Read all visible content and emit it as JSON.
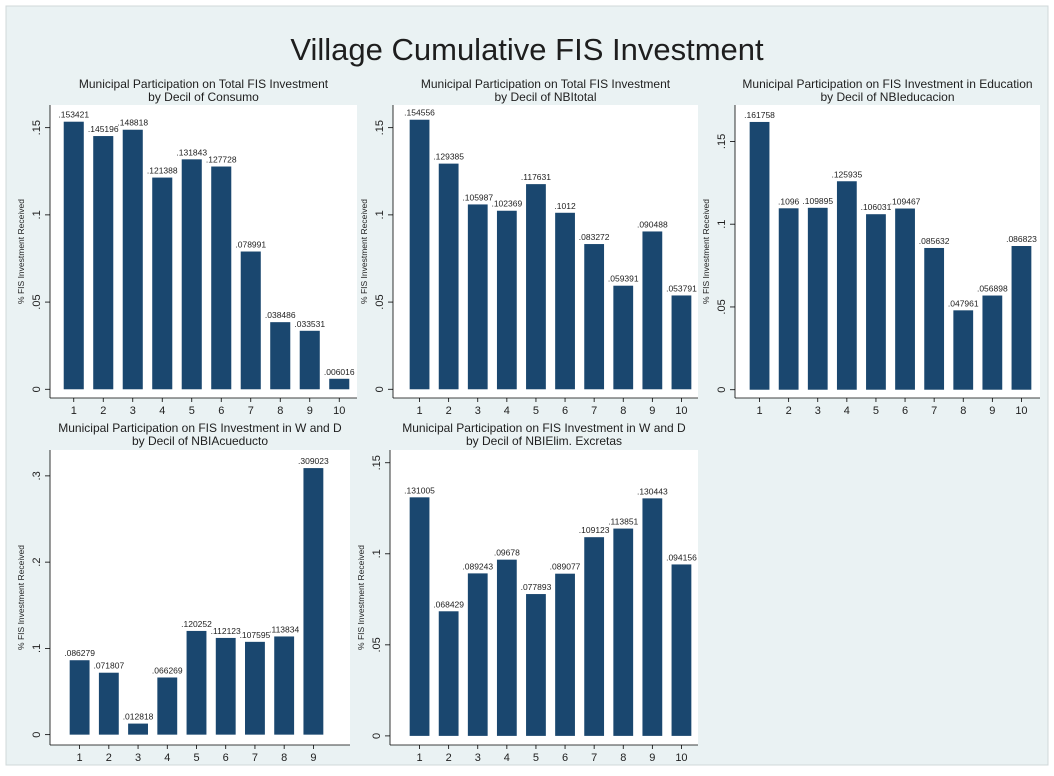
{
  "title": "Village Cumulative FIS Investment",
  "chart_data": [
    {
      "type": "bar",
      "title": [
        "Municipal Participation on Total FIS Investment",
        "by Decil of Consumo"
      ],
      "ylabel": "% FIS Investment Received",
      "color": "#1a476f",
      "categories": [
        "1",
        "2",
        "3",
        "4",
        "5",
        "6",
        "7",
        "8",
        "9",
        "10"
      ],
      "values": [
        0.153421,
        0.145196,
        0.148818,
        0.121388,
        0.131843,
        0.127728,
        0.078991,
        0.038486,
        0.033531,
        0.006016
      ],
      "value_labels": [
        ".153421",
        ".145196",
        ".148818",
        ".121388",
        ".131843",
        ".127728",
        ".078991",
        ".038486",
        ".033531",
        ".006016"
      ],
      "ylim": [
        -0.005,
        0.163
      ],
      "yticks": [
        0,
        {
          "value": 0.05,
          "label": ".05"
        },
        {
          "value": 0.1,
          "label": ".1"
        },
        {
          "value": 0.15,
          "label": ".15"
        }
      ]
    },
    {
      "type": "bar",
      "title": [
        "Municipal Participation on Total FIS Investment",
        "by Decil of NBItotal"
      ],
      "ylabel": "% FIS Investment Received",
      "color": "#1a476f",
      "categories": [
        "1",
        "2",
        "3",
        "4",
        "5",
        "6",
        "7",
        "8",
        "9",
        "10"
      ],
      "values": [
        0.154556,
        0.129385,
        0.105987,
        0.102369,
        0.117631,
        0.1012,
        0.083272,
        0.059391,
        0.090488,
        0.053791
      ],
      "value_labels": [
        ".154556",
        ".129385",
        ".105987",
        ".102369",
        ".117631",
        ".1012",
        ".083272",
        ".059391",
        ".090488",
        ".053791"
      ],
      "ylim": [
        -0.005,
        0.163
      ],
      "yticks": [
        0,
        {
          "value": 0.05,
          "label": ".05"
        },
        {
          "value": 0.1,
          "label": ".1"
        },
        {
          "value": 0.15,
          "label": ".15"
        }
      ]
    },
    {
      "type": "bar",
      "title": [
        "Municipal Participation on FIS Investment in Education",
        "by Decil of NBIeducacion"
      ],
      "ylabel": "% FIS Investment Received",
      "color": "#1a476f",
      "categories": [
        "1",
        "2",
        "3",
        "4",
        "5",
        "6",
        "7",
        "8",
        "9",
        "10"
      ],
      "values": [
        0.161758,
        0.1096,
        0.109895,
        0.125935,
        0.106031,
        0.109467,
        0.085632,
        0.047961,
        0.056898,
        0.086823
      ],
      "value_labels": [
        ".161758",
        ".1096",
        ".109895",
        ".125935",
        ".106031",
        ".109467",
        ".085632",
        ".047961",
        ".056898",
        ".086823"
      ],
      "ylim": [
        -0.005,
        0.172
      ],
      "yticks": [
        0,
        {
          "value": 0.05,
          "label": ".05"
        },
        {
          "value": 0.1,
          "label": ".1"
        },
        {
          "value": 0.15,
          "label": ".15"
        }
      ]
    },
    {
      "type": "bar",
      "title": [
        "Municipal Participation on FIS Investment in W and D",
        "by Decil of NBIAcueducto"
      ],
      "ylabel": "% FIS Investment Received",
      "color": "#1a476f",
      "categories": [
        "1",
        "2",
        "3",
        "4",
        "5",
        "6",
        "7",
        "8",
        "9"
      ],
      "values": [
        0.086279,
        0.071807,
        0.012818,
        0.066269,
        0.120252,
        0.112123,
        0.107595,
        0.113834,
        0.309023
      ],
      "value_labels": [
        ".086279",
        ".071807",
        ".012818",
        ".066269",
        ".120252",
        ".112123",
        ".107595",
        ".113834",
        ".309023"
      ],
      "ylim": [
        -0.012,
        0.33
      ],
      "yticks": [
        0,
        {
          "value": 0.1,
          "label": ".1"
        },
        {
          "value": 0.2,
          "label": ".2"
        },
        {
          "value": 0.3,
          "label": ".3"
        }
      ]
    },
    {
      "type": "bar",
      "title": [
        "Municipal Participation on FIS Investment in W and D",
        "by Decil of NBIElim. Excretas"
      ],
      "ylabel": "% FIS Investment Received",
      "color": "#1a476f",
      "categories": [
        "1",
        "2",
        "3",
        "4",
        "5",
        "6",
        "7",
        "8",
        "9",
        "10"
      ],
      "values": [
        0.131005,
        0.068429,
        0.089243,
        0.09678,
        0.077893,
        0.089077,
        0.109123,
        0.113851,
        0.130443,
        0.094156
      ],
      "value_labels": [
        ".131005",
        ".068429",
        ".089243",
        ".09678",
        ".077893",
        ".089077",
        ".109123",
        ".113851",
        ".130443",
        ".094156"
      ],
      "ylim": [
        -0.005,
        0.157
      ],
      "yticks": [
        0,
        {
          "value": 0.05,
          "label": ".05"
        },
        {
          "value": 0.1,
          "label": ".1"
        },
        {
          "value": 0.15,
          "label": ".15"
        }
      ]
    }
  ]
}
